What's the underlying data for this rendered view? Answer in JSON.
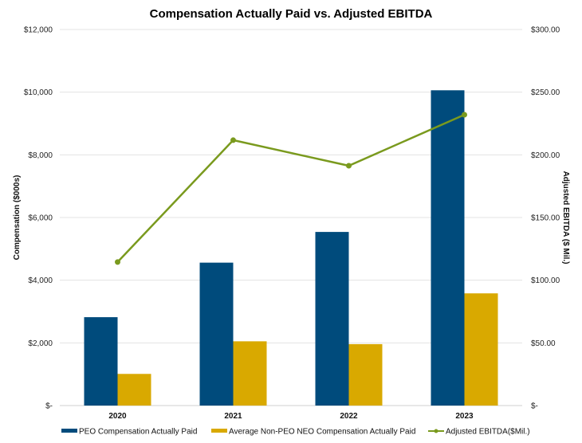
{
  "chart_data": {
    "type": "bar",
    "title": "Compensation Actually Paid vs. Adjusted EBITDA",
    "categories": [
      "2020",
      "2021",
      "2022",
      "2023"
    ],
    "series": [
      {
        "name": "PEO Compensation Actually Paid",
        "type": "bar",
        "axis": "left",
        "color": "#004b7c",
        "values": [
          2820,
          4560,
          5540,
          10060
        ]
      },
      {
        "name": "Average Non-PEO NEO Compensation Actually Paid",
        "type": "bar",
        "axis": "left",
        "color": "#d9a900",
        "values": [
          1010,
          2050,
          1960,
          3580
        ]
      },
      {
        "name": "Adjusted EBITDA($Mil.)",
        "type": "line",
        "axis": "right",
        "color": "#7a9a1e",
        "values": [
          114.5,
          211.7,
          191.3,
          232.0
        ]
      }
    ],
    "ylabel": "Compensation ($000s)",
    "y2label": "Adjusted EBITDA ($ Mil.)",
    "ylim": [
      0,
      12000
    ],
    "y2lim": [
      0,
      300
    ],
    "yticks": [
      "$-",
      "$2,000",
      "$4,000",
      "$6,000",
      "$8,000",
      "$10,000",
      "$12,000"
    ],
    "y2ticks": [
      "$-",
      "$50.00",
      "$100.00",
      "$150.00",
      "$200.00",
      "$250.00",
      "$300.00"
    ],
    "grid": true,
    "legend": "bottom"
  }
}
